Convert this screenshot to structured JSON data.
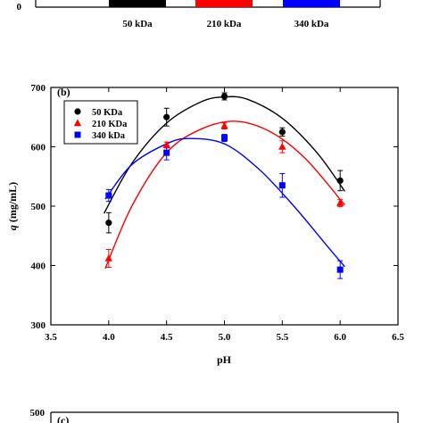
{
  "top_panel": {
    "zero_label": "0",
    "legend": [
      {
        "label": "50 kDa",
        "color": "#000000"
      },
      {
        "label": "210 kDa",
        "color": "#ff0000"
      },
      {
        "label": "340 kDa",
        "color": "#0000ff"
      }
    ]
  },
  "chart_data": {
    "type": "scatter",
    "panel_label": "(b)",
    "xlabel": "pH",
    "ylabel": "q (mg/mL)",
    "xlim": [
      3.5,
      6.5
    ],
    "ylim": [
      300,
      700
    ],
    "xticks": [
      "3.5",
      "4.0",
      "4.5",
      "5.0",
      "5.5",
      "6.0",
      "6.5"
    ],
    "yticks": [
      "300",
      "400",
      "500",
      "600",
      "700"
    ],
    "grid": false,
    "legend_position": "top-left",
    "x": [
      4.0,
      4.5,
      5.0,
      5.5,
      6.0
    ],
    "series": [
      {
        "name": "50 KDa",
        "color": "#000000",
        "marker": "circle",
        "values": [
          472,
          650,
          685,
          625,
          543
        ],
        "errors": [
          17,
          15,
          6,
          7,
          17
        ],
        "fit": [
          [
            3.96,
            488
          ],
          [
            4.2,
            572
          ],
          [
            4.5,
            640
          ],
          [
            4.8,
            676
          ],
          [
            5.0,
            684
          ],
          [
            5.2,
            680
          ],
          [
            5.5,
            648
          ],
          [
            5.8,
            590
          ],
          [
            6.04,
            525
          ]
        ]
      },
      {
        "name": "210 KDa",
        "color": "#ff0000",
        "marker": "triangle",
        "values": [
          412,
          603,
          635,
          600,
          505
        ],
        "errors": [
          15,
          5,
          5,
          10,
          6
        ],
        "fit": [
          [
            3.97,
            395
          ],
          [
            4.2,
            500
          ],
          [
            4.5,
            590
          ],
          [
            4.8,
            630
          ],
          [
            5.1,
            643
          ],
          [
            5.4,
            625
          ],
          [
            5.7,
            580
          ],
          [
            6.04,
            502
          ]
        ]
      },
      {
        "name": "340 kDa",
        "color": "#0000ff",
        "marker": "square",
        "values": [
          518,
          590,
          615,
          535,
          393
        ],
        "errors": [
          10,
          12,
          6,
          20,
          15
        ],
        "fit": [
          [
            3.97,
            512
          ],
          [
            4.2,
            570
          ],
          [
            4.5,
            605
          ],
          [
            4.7,
            614
          ],
          [
            5.0,
            605
          ],
          [
            5.3,
            562
          ],
          [
            5.6,
            500
          ],
          [
            5.9,
            430
          ],
          [
            6.04,
            398
          ]
        ]
      }
    ]
  },
  "bottom_panel": {
    "panel_label": "(c)",
    "y_top_label": "500"
  }
}
